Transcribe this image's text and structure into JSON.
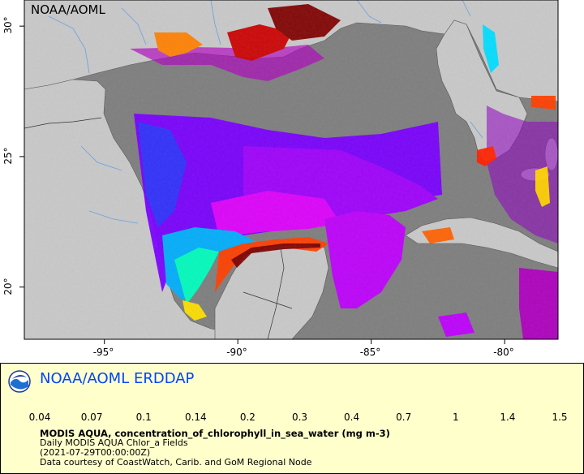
{
  "map": {
    "watermark": "NOAA/AOML",
    "lon_ticks": [
      {
        "value": -95,
        "label": "-95°"
      },
      {
        "value": -90,
        "label": "-90°"
      },
      {
        "value": -85,
        "label": "-85°"
      },
      {
        "value": -80,
        "label": "-80°"
      }
    ],
    "lat_ticks": [
      {
        "value": 30,
        "label": "30°"
      },
      {
        "value": 25,
        "label": "25°"
      },
      {
        "value": 20,
        "label": "20°"
      }
    ],
    "lon_range": [
      -98,
      -78
    ],
    "lat_range": [
      18,
      31
    ],
    "colors": {
      "land": "#c8c8c8",
      "water": "#7f7f7f",
      "border": "#000000",
      "rivers": "#6aa0e0"
    }
  },
  "legend": {
    "title": "NOAA/AOML ERDDAP",
    "colorbar_ticks": [
      "0.04",
      "0.07",
      "0.1",
      "0.14",
      "0.2",
      "0.3",
      "0.4",
      "0.7",
      "1",
      "1.4",
      "1.5"
    ],
    "colorbar_stops": [
      "#800080",
      "#c000c0",
      "#ff00ff",
      "#7f00ff",
      "#0000ff",
      "#00aaff",
      "#00ffff",
      "#00ff80",
      "#00ff00",
      "#aaff00",
      "#ffff00",
      "#ffaa00",
      "#ff4000",
      "#cc0000",
      "#800000"
    ],
    "variable_line": "MODIS AQUA, concentration_of_chlorophyll_in_sea_water (mg m-3)",
    "dataset_line": "Daily MODIS AQUA Chlor_a Fields",
    "time_line": "(2021-07-29T00:00:00Z)",
    "credit_line": "Data courtesy of CoastWatch, Carib. and GoM Regional Node"
  }
}
